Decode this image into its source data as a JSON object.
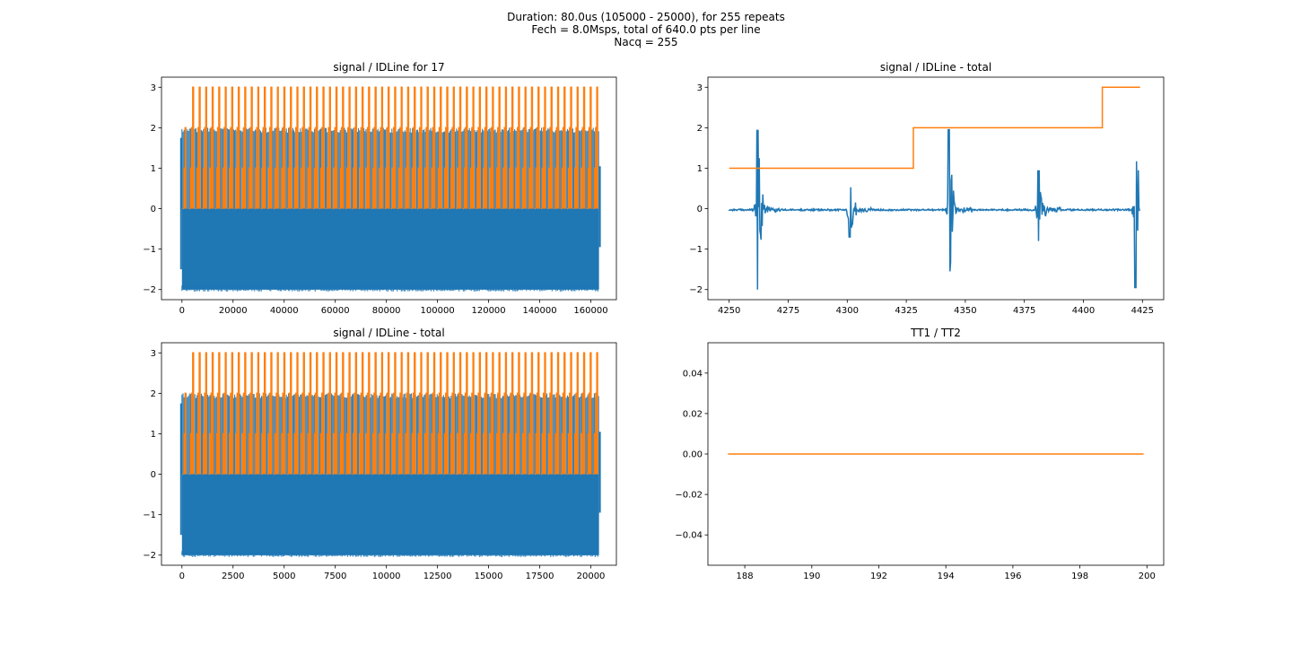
{
  "suptitle": {
    "line1": "Duration: 80.0us (105000 - 25000), for 255 repeats",
    "line2": "Fech = 8.0Msps, total of 640.0 pts per line",
    "line3": "Nacq = 255"
  },
  "colors": {
    "signal": "#1f77b4",
    "idline": "#ff7f0e",
    "axes": "#000000"
  },
  "chart_data": [
    {
      "id": "top-left",
      "type": "line",
      "title": "signal / IDLine for 17",
      "xlim": [
        -8000,
        170000
      ],
      "ylim": [
        -2.25,
        3.25
      ],
      "xticks": [
        0,
        20000,
        40000,
        60000,
        80000,
        100000,
        120000,
        140000,
        160000
      ],
      "yticks": [
        -2,
        -1,
        0,
        1,
        2,
        3
      ],
      "series": [
        {
          "kind": "dense-signal",
          "x_range": [
            0,
            163200
          ],
          "min": -2.0,
          "max": 2.0,
          "bulk_min": -2.0,
          "bulk_max": 0.0,
          "edge_low": -1.5,
          "edge_high": 1.05
        },
        {
          "kind": "pulse-train",
          "x_range": [
            0,
            163200
          ],
          "levels": [
            0,
            1,
            2,
            3
          ],
          "pulses": 64
        }
      ]
    },
    {
      "id": "top-right",
      "type": "line",
      "title": "signal / IDLine - total",
      "xlim": [
        4241,
        4434
      ],
      "ylim": [
        -2.25,
        3.25
      ],
      "xticks": [
        4250,
        4275,
        4300,
        4325,
        4350,
        4375,
        4400,
        4425
      ],
      "yticks": [
        -2,
        -1,
        0,
        1,
        2,
        3
      ],
      "series": [
        {
          "kind": "bursts",
          "x_range": [
            4250,
            4424
          ],
          "baseline": -0.03,
          "bursts": [
            {
              "x": 4262,
              "max": 1.95,
              "min": -2.0
            },
            {
              "x": 4301,
              "max": 0.85,
              "min": -0.7
            },
            {
              "x": 4343,
              "max": 1.95,
              "min": -2.0
            },
            {
              "x": 4381,
              "max": 0.95,
              "min": -0.8
            },
            {
              "x": 4422,
              "max": 1.95,
              "min": -1.95
            }
          ]
        },
        {
          "kind": "step",
          "x": [
            4250,
            4328,
            4328,
            4408,
            4408,
            4424
          ],
          "y": [
            1,
            1,
            2,
            2,
            3,
            3
          ]
        }
      ]
    },
    {
      "id": "bottom-left",
      "type": "line",
      "title": "signal / IDLine - total",
      "xlim": [
        -1000,
        21250
      ],
      "ylim": [
        -2.25,
        3.25
      ],
      "xticks": [
        0,
        2500,
        5000,
        7500,
        10000,
        12500,
        15000,
        17500,
        20000
      ],
      "yticks": [
        -2,
        -1,
        0,
        1,
        2,
        3
      ],
      "series": [
        {
          "kind": "dense-signal",
          "x_range": [
            0,
            20400
          ],
          "min": -2.0,
          "max": 2.0,
          "bulk_min": -2.0,
          "bulk_max": 0.0,
          "edge_low": -1.5,
          "edge_high": 1.05
        },
        {
          "kind": "pulse-train",
          "x_range": [
            0,
            20400
          ],
          "levels": [
            0,
            1,
            2,
            3
          ],
          "pulses": 64
        }
      ]
    },
    {
      "id": "bottom-right",
      "type": "line",
      "title": "TT1 / TT2",
      "xlim": [
        186.9,
        200.5
      ],
      "ylim": [
        -0.055,
        0.055
      ],
      "xticks": [
        188,
        190,
        192,
        194,
        196,
        198,
        200
      ],
      "yticks": [
        -0.04,
        -0.02,
        0.0,
        0.02,
        0.04
      ],
      "series": [
        {
          "kind": "flat",
          "x": [
            187.5,
            199.9
          ],
          "y": [
            0,
            0
          ]
        }
      ]
    }
  ]
}
